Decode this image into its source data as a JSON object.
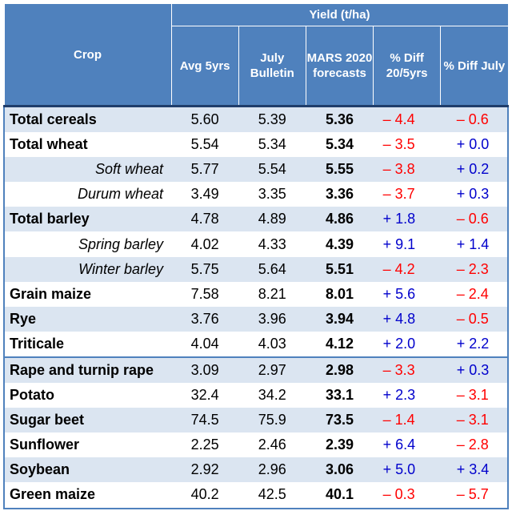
{
  "header": {
    "crop": "Crop",
    "yield": "Yield (t/ha)",
    "avg": "Avg 5yrs",
    "july": "July Bulletin",
    "mars": "MARS 2020 forecasts",
    "diff5": "% Diff 20/5yrs",
    "diffjuly": "% Diff July"
  },
  "rows": [
    {
      "crop": "Total cereals",
      "avg": "5.60",
      "july": "5.39",
      "mars": "5.36",
      "d5": "– 4.4",
      "d5s": "neg",
      "dj": "– 0.6",
      "djs": "neg"
    },
    {
      "crop": "Total wheat",
      "avg": "5.54",
      "july": "5.34",
      "mars": "5.34",
      "d5": "– 3.5",
      "d5s": "neg",
      "dj": "+ 0.0",
      "djs": "pos"
    },
    {
      "crop": "Soft wheat",
      "avg": "5.77",
      "july": "5.54",
      "mars": "5.55",
      "d5": "– 3.8",
      "d5s": "neg",
      "dj": "+ 0.2",
      "djs": "pos"
    },
    {
      "crop": "Durum wheat",
      "avg": "3.49",
      "july": "3.35",
      "mars": "3.36",
      "d5": "– 3.7",
      "d5s": "neg",
      "dj": "+ 0.3",
      "djs": "pos"
    },
    {
      "crop": "Total barley",
      "avg": "4.78",
      "july": "4.89",
      "mars": "4.86",
      "d5": "+ 1.8",
      "d5s": "pos",
      "dj": "– 0.6",
      "djs": "neg"
    },
    {
      "crop": "Spring barley",
      "avg": "4.02",
      "july": "4.33",
      "mars": "4.39",
      "d5": "+ 9.1",
      "d5s": "pos",
      "dj": "+ 1.4",
      "djs": "pos"
    },
    {
      "crop": "Winter barley",
      "avg": "5.75",
      "july": "5.64",
      "mars": "5.51",
      "d5": "– 4.2",
      "d5s": "neg",
      "dj": "– 2.3",
      "djs": "neg"
    },
    {
      "crop": "Grain maize",
      "avg": "7.58",
      "july": "8.21",
      "mars": "8.01",
      "d5": "+ 5.6",
      "d5s": "pos",
      "dj": "– 2.4",
      "djs": "neg"
    },
    {
      "crop": "Rye",
      "avg": "3.76",
      "july": "3.96",
      "mars": "3.94",
      "d5": "+ 4.8",
      "d5s": "pos",
      "dj": "– 0.5",
      "djs": "neg"
    },
    {
      "crop": "Triticale",
      "avg": "4.04",
      "july": "4.03",
      "mars": "4.12",
      "d5": "+ 2.0",
      "d5s": "pos",
      "dj": "+ 2.2",
      "djs": "pos"
    },
    {
      "crop": "Rape and turnip rape",
      "avg": "3.09",
      "july": "2.97",
      "mars": "2.98",
      "d5": "– 3.3",
      "d5s": "neg",
      "dj": "+ 0.3",
      "djs": "pos"
    },
    {
      "crop": "Potato",
      "avg": "32.4",
      "july": "34.2",
      "mars": "33.1",
      "d5": "+ 2.3",
      "d5s": "pos",
      "dj": "– 3.1",
      "djs": "neg"
    },
    {
      "crop": "Sugar beet",
      "avg": "74.5",
      "july": "75.9",
      "mars": "73.5",
      "d5": "– 1.4",
      "d5s": "neg",
      "dj": "– 3.1",
      "djs": "neg"
    },
    {
      "crop": "Sunflower",
      "avg": "2.25",
      "july": "2.46",
      "mars": "2.39",
      "d5": "+ 6.4",
      "d5s": "pos",
      "dj": "– 2.8",
      "djs": "neg"
    },
    {
      "crop": "Soybean",
      "avg": "2.92",
      "july": "2.96",
      "mars": "3.06",
      "d5": "+ 5.0",
      "d5s": "pos",
      "dj": "+ 3.4",
      "djs": "pos"
    },
    {
      "crop": "Green maize",
      "avg": "40.2",
      "july": "42.5",
      "mars": "40.1",
      "d5": "– 0.3",
      "d5s": "neg",
      "dj": "– 5.7",
      "djs": "neg"
    }
  ],
  "colors": {
    "header_bg": "#4f81bd",
    "band": "#dbe5f1",
    "negative": "#ff0000",
    "positive": "#0000cc"
  }
}
